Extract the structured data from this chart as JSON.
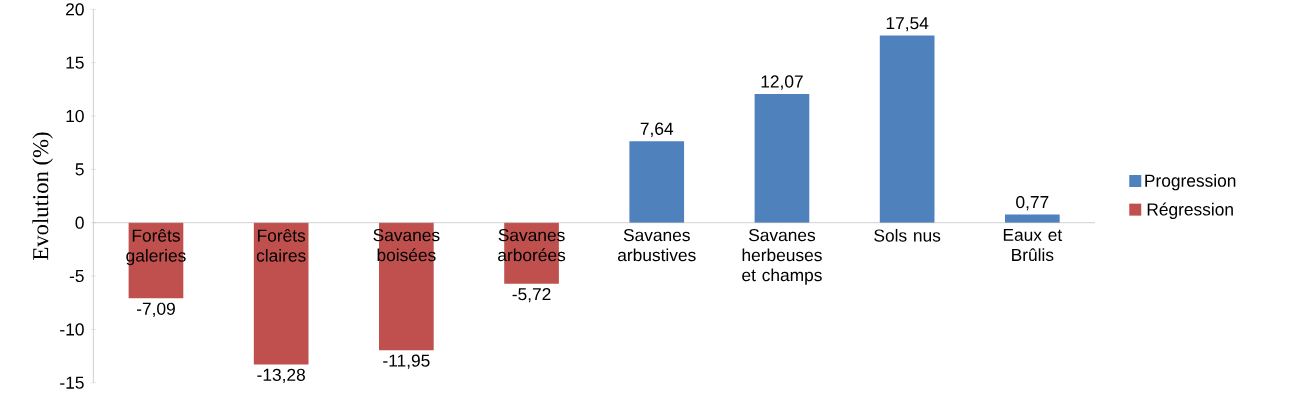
{
  "chart_data": {
    "type": "bar",
    "ylabel": "Evolution (%)",
    "categories": [
      "Forêts galeries",
      "Forêts claires",
      "Savanes boisées",
      "Savanes arborées",
      "Savanes arbustives",
      "Savanes herbeuses et champs",
      "Sols nus",
      "Eaux et Brûlis"
    ],
    "series": [
      {
        "name": "Progression",
        "color": "#4f81bd",
        "values": [
          null,
          null,
          null,
          null,
          7.64,
          12.07,
          17.54,
          0.77
        ],
        "value_labels": [
          null,
          null,
          null,
          null,
          "7,64",
          "12,07",
          "17,54",
          "0,77"
        ]
      },
      {
        "name": "Régression",
        "color": "#c0504d",
        "values": [
          -7.09,
          -13.28,
          -11.95,
          -5.72,
          null,
          null,
          null,
          null
        ],
        "value_labels": [
          "-7,09",
          "-13,28",
          "-11,95",
          "-5,72",
          null,
          null,
          null,
          null
        ]
      }
    ],
    "ylim": [
      -15,
      20
    ],
    "yticks": [
      -15,
      -10,
      -5,
      0,
      5,
      10,
      15,
      20
    ],
    "grid": false,
    "legend": "right"
  }
}
